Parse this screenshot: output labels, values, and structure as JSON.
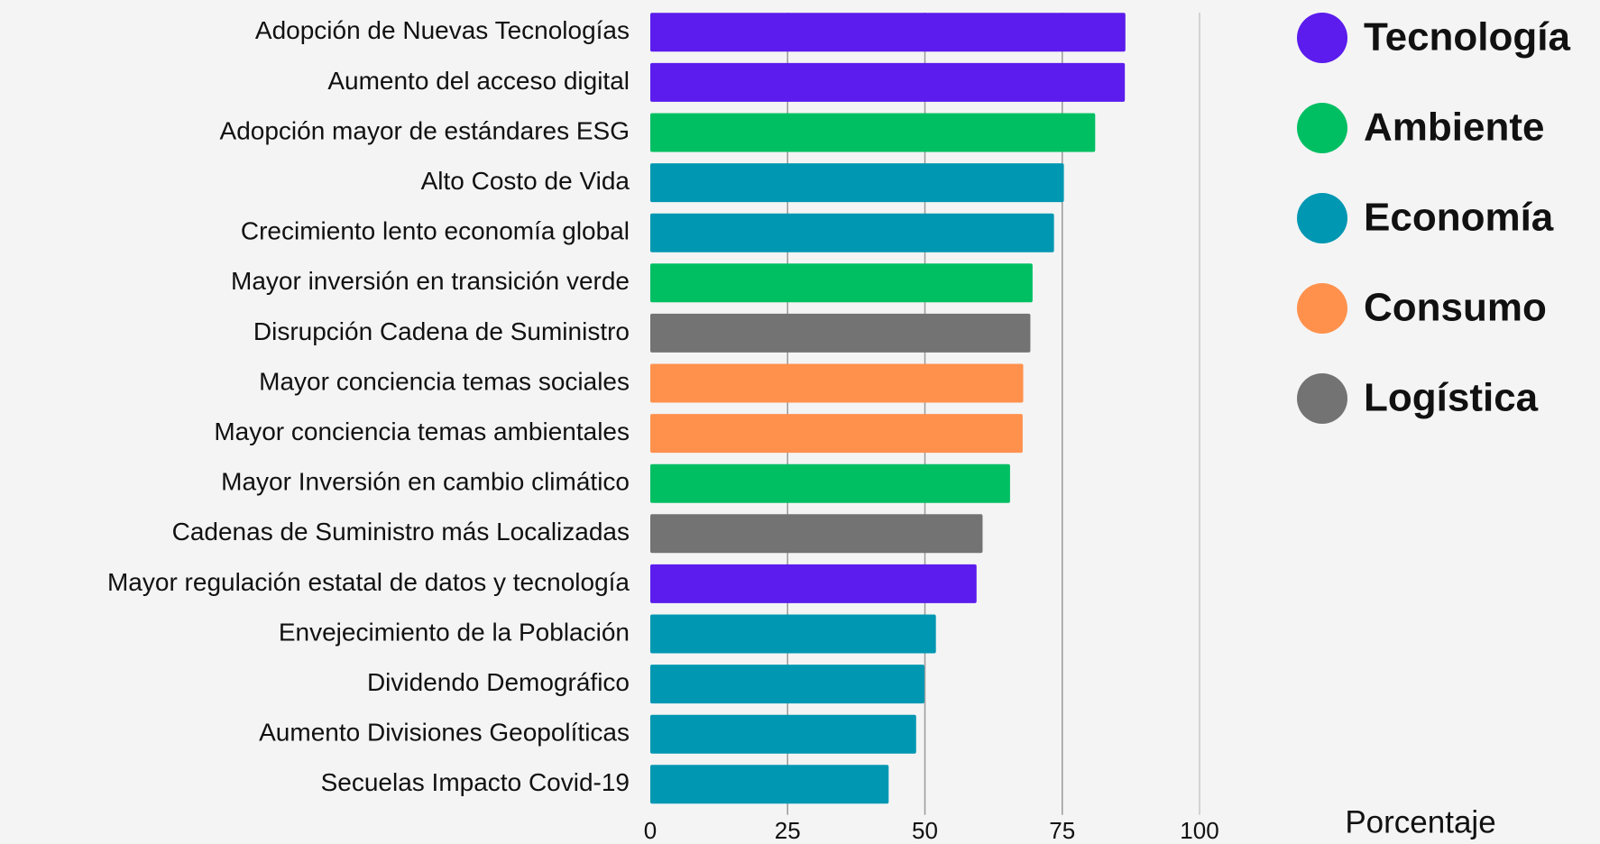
{
  "chart_data": {
    "type": "bar",
    "orientation": "horizontal",
    "categories": [
      "Adopción de Nuevas Tecnologías",
      "Aumento del acceso digital",
      "Adopción mayor de estándares ESG",
      "Alto Costo de Vida",
      "Crecimiento lento economía global",
      "Mayor inversión en transición verde",
      "Disrupción Cadena de Suministro",
      "Mayor conciencia temas sociales",
      "Mayor conciencia temas ambientales",
      "Mayor Inversión en cambio climático",
      "Cadenas de Suministro más Localizadas",
      "Mayor regulación estatal de datos y tecnología",
      "Envejecimiento de la Población",
      "Dividendo Demográfico",
      "Aumento Divisiones Geopolíticas",
      "Secuelas Impacto Covid-19"
    ],
    "series": [
      {
        "name": "Tecnología",
        "color": "#5b1ced",
        "values": [
          86.5,
          86.4,
          null,
          null,
          null,
          null,
          null,
          null,
          null,
          null,
          null,
          59.4,
          null,
          null,
          null,
          null
        ]
      },
      {
        "name": "Ambiente",
        "color": "#00bf63",
        "values": [
          null,
          null,
          81,
          null,
          null,
          69.6,
          null,
          null,
          null,
          65.5,
          null,
          null,
          null,
          null,
          null,
          null
        ]
      },
      {
        "name": "Economía",
        "color": "#0097b2",
        "values": [
          null,
          null,
          null,
          75.3,
          73.5,
          null,
          null,
          null,
          null,
          null,
          null,
          null,
          52,
          49.9,
          48.4,
          43.4
        ]
      },
      {
        "name": "Consumo",
        "color": "#ff914d",
        "values": [
          null,
          null,
          null,
          null,
          null,
          null,
          null,
          67.9,
          67.8,
          null,
          null,
          null,
          null,
          null,
          null,
          null
        ]
      },
      {
        "name": "Logística",
        "color": "#737373",
        "values": [
          null,
          null,
          null,
          null,
          null,
          null,
          69.2,
          null,
          null,
          null,
          60.5,
          null,
          null,
          null,
          null,
          null
        ]
      }
    ],
    "xlim": [
      0,
      100
    ],
    "xticks": [
      0,
      25,
      50,
      75,
      100
    ],
    "xlabel": "Porcentaje",
    "grid": true,
    "legend": "top-right"
  }
}
